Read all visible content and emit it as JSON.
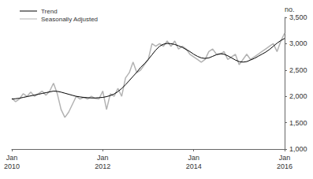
{
  "chart_data": {
    "type": "line",
    "y_label": "no.",
    "categories": [
      "Jan 2010",
      null,
      null,
      null,
      null,
      null,
      null,
      null,
      null,
      null,
      null,
      null,
      null,
      null,
      null,
      null,
      null,
      null,
      null,
      null,
      null,
      null,
      null,
      null,
      "Jan 2012",
      null,
      null,
      null,
      null,
      null,
      null,
      null,
      null,
      null,
      null,
      null,
      null,
      null,
      null,
      null,
      null,
      null,
      null,
      null,
      null,
      null,
      null,
      null,
      "Jan 2014",
      null,
      null,
      null,
      null,
      null,
      null,
      null,
      null,
      null,
      null,
      null,
      null,
      null,
      null,
      null,
      null,
      null,
      null,
      null,
      null,
      null,
      null,
      null,
      "Jan 2016"
    ],
    "series": [
      {
        "name": "Trend",
        "color": "#000000",
        "values": [
          1950,
          1955,
          1965,
          1980,
          1995,
          2010,
          2025,
          2040,
          2055,
          2070,
          2085,
          2100,
          2095,
          2080,
          2060,
          2040,
          2020,
          2000,
          1990,
          1980,
          1975,
          1970,
          1970,
          1975,
          1980,
          1995,
          2015,
          2045,
          2090,
          2150,
          2220,
          2300,
          2380,
          2460,
          2550,
          2620,
          2700,
          2790,
          2880,
          2950,
          2990,
          3005,
          3000,
          2985,
          2960,
          2930,
          2890,
          2850,
          2800,
          2760,
          2730,
          2720,
          2730,
          2760,
          2790,
          2810,
          2800,
          2770,
          2730,
          2690,
          2660,
          2650,
          2660,
          2690,
          2720,
          2760,
          2800,
          2840,
          2890,
          2950,
          3010,
          3060,
          3100
        ]
      },
      {
        "name": "Seasonally Adjusted",
        "color": "#b3b3b3",
        "values": [
          1960,
          1900,
          1950,
          2050,
          2000,
          2080,
          2000,
          2050,
          2100,
          2020,
          2100,
          2250,
          2050,
          1750,
          1600,
          1700,
          1850,
          2000,
          1950,
          1980,
          1950,
          2000,
          1960,
          1950,
          2100,
          1750,
          2050,
          2000,
          2150,
          2000,
          2350,
          2450,
          2650,
          2450,
          2500,
          2600,
          2700,
          3000,
          2950,
          3000,
          2950,
          3050,
          2950,
          3050,
          2900,
          2950,
          2900,
          2800,
          2750,
          2700,
          2650,
          2700,
          2850,
          2900,
          2800,
          2800,
          2850,
          2700,
          2750,
          2800,
          2600,
          2700,
          2800,
          2700,
          2750,
          2800,
          2850,
          2900,
          2950,
          3000,
          2850,
          3050,
          3200
        ]
      }
    ],
    "ylim": [
      1000,
      3500
    ],
    "yticks": [
      1000,
      1500,
      2000,
      2500,
      3000,
      3500
    ],
    "grid": false,
    "legend": "upper left"
  }
}
